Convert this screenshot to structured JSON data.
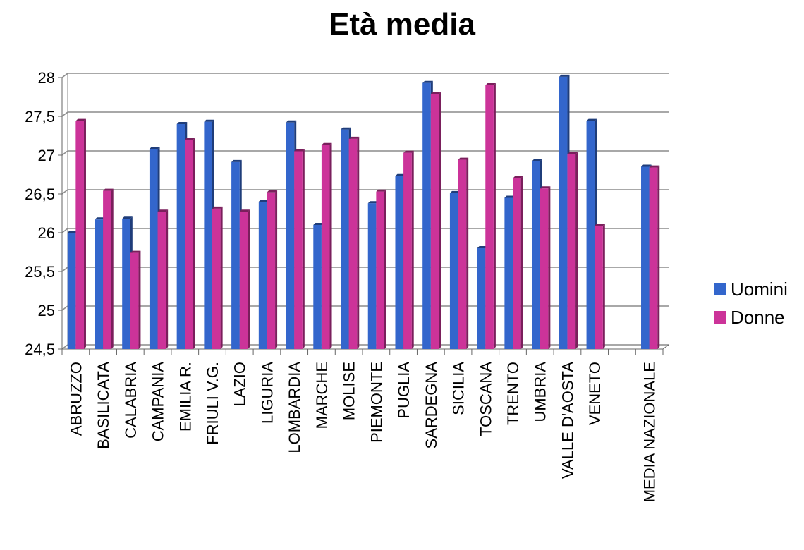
{
  "chart_data": {
    "type": "bar",
    "title": "Età media",
    "xlabel": "",
    "ylabel": "",
    "ylim": [
      24.5,
      28
    ],
    "yticks": [
      "24,5",
      "25",
      "25,5",
      "26",
      "26,5",
      "27",
      "27,5",
      "28"
    ],
    "grid": true,
    "legend_position": "right",
    "categories": [
      "ABRUZZO",
      "BASILICATA",
      "CALABRIA",
      "CAMPANIA",
      "EMILIA R.",
      "FRIULI V.G.",
      "LAZIO",
      "LIGURIA",
      "LOMBARDIA",
      "MARCHE",
      "MOLISE",
      "PIEMONTE",
      "PUGLIA",
      "SARDEGNA",
      "SICILIA",
      "TOSCANA",
      "TRENTO",
      "UMBRIA",
      "VALLE D'AOSTA",
      "VENETO",
      "",
      "MEDIA NAZIONALE"
    ],
    "series": [
      {
        "name": "Uomini",
        "color": "#3366cc",
        "values": [
          26.0,
          26.17,
          26.18,
          27.08,
          27.4,
          27.43,
          26.91,
          26.4,
          27.42,
          26.1,
          27.33,
          26.38,
          26.73,
          27.93,
          26.51,
          25.8,
          26.45,
          26.92,
          28.01,
          27.44,
          null,
          26.85
        ]
      },
      {
        "name": "Donne",
        "color": "#cc3399",
        "values": [
          27.44,
          26.54,
          25.74,
          26.27,
          27.2,
          26.31,
          26.27,
          26.52,
          27.05,
          27.13,
          27.21,
          26.53,
          27.03,
          27.79,
          26.94,
          27.9,
          26.7,
          26.57,
          27.01,
          26.09,
          null,
          26.84
        ]
      }
    ]
  }
}
